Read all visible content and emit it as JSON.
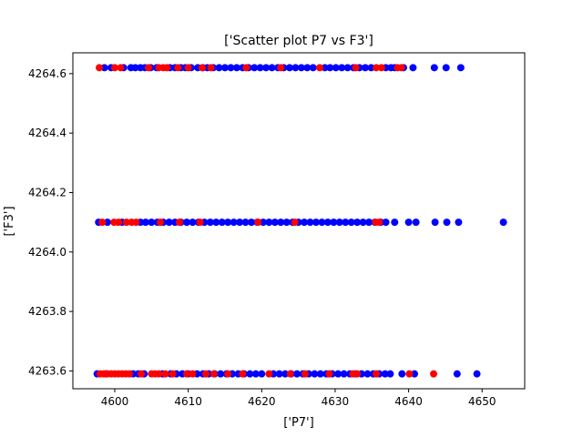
{
  "chart_data": {
    "type": "scatter",
    "title": "['Scatter plot P7 vs F3']",
    "xlabel": "['P7']",
    "ylabel": "['F3']",
    "xlim": [
      4594.3,
      4655.8
    ],
    "ylim": [
      4263.54,
      4264.67
    ],
    "xticks": [
      4600,
      4610,
      4620,
      4630,
      4640,
      4650
    ],
    "yticks": [
      4263.6,
      4263.8,
      4264.0,
      4264.2,
      4264.4,
      4264.6
    ],
    "xtick_labels": [
      "4600",
      "4610",
      "4620",
      "4630",
      "4640",
      "4650"
    ],
    "ytick_labels": [
      "4263.6",
      "4263.8",
      "4264.0",
      "4264.2",
      "4264.4",
      "4264.6"
    ],
    "grid": false,
    "colors": {
      "blue": "#0000ff",
      "red": "#ff0000"
    },
    "rows": [
      {
        "y": 4264.62,
        "blue_x": [
          4598.6,
          4599.5,
          4601.2,
          4602.2,
          4602.8,
          4603.5,
          4604.1,
          4604.9,
          4605.7,
          4607.5,
          4608.2,
          4609.0,
          4609.6,
          4610.4,
          4611.3,
          4612.0,
          4612.6,
          4613.4,
          4614.2,
          4615.0,
          4615.8,
          4616.6,
          4617.4,
          4618.2,
          4619.0,
          4619.8,
          4620.6,
          4621.4,
          4622.2,
          4623.0,
          4623.8,
          4624.6,
          4625.4,
          4626.2,
          4627.0,
          4628.6,
          4629.3,
          4630.1,
          4630.9,
          4631.7,
          4632.5,
          4633.3,
          4634.1,
          4634.9,
          4636.9,
          4637.6,
          4638.1,
          4639.3,
          4640.6,
          4643.5,
          4645.1,
          4647.1
        ],
        "red_x": [
          4597.9,
          4600.0,
          4600.8,
          4604.6,
          4606.0,
          4606.6,
          4607.1,
          4608.6,
          4610.0,
          4611.9,
          4613.1,
          4617.9,
          4622.6,
          4627.9,
          4632.8,
          4635.6,
          4636.3,
          4638.5,
          4639.0
        ]
      },
      {
        "y": 4264.1,
        "blue_x": [
          4597.8,
          4599.0,
          4601.0,
          4603.5,
          4604.2,
          4605.0,
          4605.8,
          4606.6,
          4607.4,
          4608.2,
          4609.0,
          4609.8,
          4610.6,
          4611.4,
          4612.2,
          4613.0,
          4613.8,
          4614.6,
          4615.4,
          4616.2,
          4617.0,
          4617.8,
          4618.6,
          4619.4,
          4620.2,
          4621.0,
          4621.8,
          4622.6,
          4623.4,
          4624.2,
          4625.0,
          4625.8,
          4626.6,
          4627.4,
          4628.2,
          4629.0,
          4629.8,
          4630.6,
          4631.4,
          4632.2,
          4633.0,
          4633.8,
          4634.6,
          4635.4,
          4636.2,
          4636.9,
          4638.1,
          4640.0,
          4641.0,
          4643.6,
          4645.2,
          4646.8,
          4652.9
        ],
        "red_x": [
          4598.3,
          4599.9,
          4600.5,
          4601.6,
          4602.3,
          4602.9,
          4606.2,
          4608.8,
          4611.6,
          4619.5,
          4624.5,
          4635.5,
          4636.0
        ]
      },
      {
        "y": 4263.59,
        "blue_x": [
          4597.6,
          4598.8,
          4602.5,
          4603.2,
          4604.0,
          4606.5,
          4607.6,
          4608.4,
          4609.2,
          4610.0,
          4611.2,
          4612.0,
          4612.8,
          4613.6,
          4614.4,
          4615.2,
          4616.0,
          4616.8,
          4617.6,
          4618.4,
          4619.2,
          4620.0,
          4621.6,
          4622.4,
          4623.2,
          4624.0,
          4624.8,
          4625.6,
          4626.4,
          4627.2,
          4628.0,
          4628.8,
          4629.6,
          4630.4,
          4631.2,
          4632.0,
          4632.8,
          4633.6,
          4634.4,
          4635.2,
          4636.0,
          4636.8,
          4637.5,
          4639.1,
          4640.8,
          4646.6,
          4649.3
        ],
        "red_x": [
          4598.0,
          4598.5,
          4599.0,
          4599.5,
          4600.0,
          4600.5,
          4601.0,
          4601.5,
          4602.0,
          4603.6,
          4605.0,
          4605.5,
          4606.0,
          4606.9,
          4607.9,
          4609.8,
          4610.6,
          4612.4,
          4613.5,
          4615.4,
          4617.4,
          4621.0,
          4623.9,
          4625.9,
          4629.2,
          4632.4,
          4633.0,
          4635.6,
          4640.1,
          4643.4
        ]
      }
    ]
  }
}
